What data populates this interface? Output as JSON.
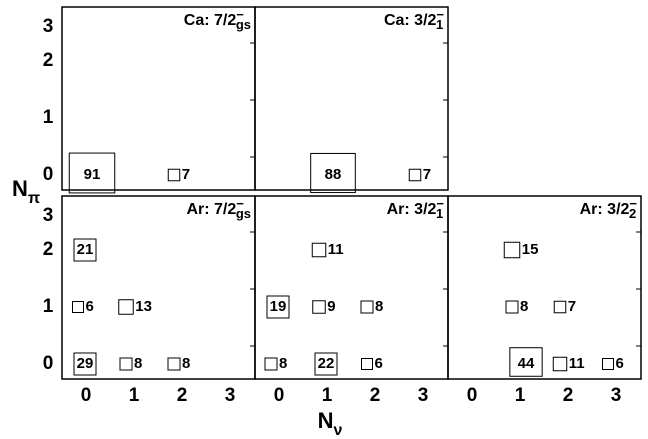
{
  "chart_data": {
    "type": "heatmap",
    "xlabel": "N",
    "xlabel_sub": "ν",
    "ylabel": "N",
    "ylabel_sub": "π",
    "x_ticks": [
      "0",
      "1",
      "2",
      "3"
    ],
    "y_ticks": [
      "0",
      "1",
      "2",
      "3"
    ],
    "panels": [
      {
        "title_main": "Ca: 7/2",
        "title_sup": "−",
        "title_sub": "gs",
        "row": 0,
        "col": 0,
        "cells": [
          {
            "nnu": 0,
            "npi": 0,
            "value": 91
          },
          {
            "nnu": 2,
            "npi": 0,
            "value": 7
          }
        ]
      },
      {
        "title_main": "Ca: 3/2",
        "title_sup": "−",
        "title_sub": "1",
        "row": 0,
        "col": 1,
        "cells": [
          {
            "nnu": 1,
            "npi": 0,
            "value": 88
          },
          {
            "nnu": 3,
            "npi": 0,
            "value": 7
          }
        ]
      },
      {
        "title_main": "Ar: 7/2",
        "title_sup": "−",
        "title_sub": "gs",
        "row": 1,
        "col": 0,
        "cells": [
          {
            "nnu": 0,
            "npi": 2,
            "value": 21
          },
          {
            "nnu": 0,
            "npi": 1,
            "value": 6
          },
          {
            "nnu": 1,
            "npi": 1,
            "value": 13
          },
          {
            "nnu": 0,
            "npi": 0,
            "value": 29
          },
          {
            "nnu": 1,
            "npi": 0,
            "value": 8
          },
          {
            "nnu": 2,
            "npi": 0,
            "value": 8
          }
        ]
      },
      {
        "title_main": "Ar: 3/2",
        "title_sup": "−",
        "title_sub": "1",
        "row": 1,
        "col": 1,
        "cells": [
          {
            "nnu": 1,
            "npi": 2,
            "value": 11
          },
          {
            "nnu": 0,
            "npi": 1,
            "value": 19
          },
          {
            "nnu": 1,
            "npi": 1,
            "value": 9
          },
          {
            "nnu": 2,
            "npi": 1,
            "value": 8
          },
          {
            "nnu": 0,
            "npi": 0,
            "value": 8
          },
          {
            "nnu": 1,
            "npi": 0,
            "value": 22
          },
          {
            "nnu": 2,
            "npi": 0,
            "value": 6
          }
        ]
      },
      {
        "title_main": "Ar: 3/2",
        "title_sup": "−",
        "title_sub": "2",
        "row": 1,
        "col": 2,
        "cells": [
          {
            "nnu": 1,
            "npi": 2,
            "value": 15
          },
          {
            "nnu": 1,
            "npi": 1,
            "value": 8
          },
          {
            "nnu": 2,
            "npi": 1,
            "value": 7
          },
          {
            "nnu": 1,
            "npi": 0,
            "value": 44
          },
          {
            "nnu": 2,
            "npi": 0,
            "value": 11
          },
          {
            "nnu": 3,
            "npi": 0,
            "value": 6
          }
        ]
      }
    ]
  }
}
